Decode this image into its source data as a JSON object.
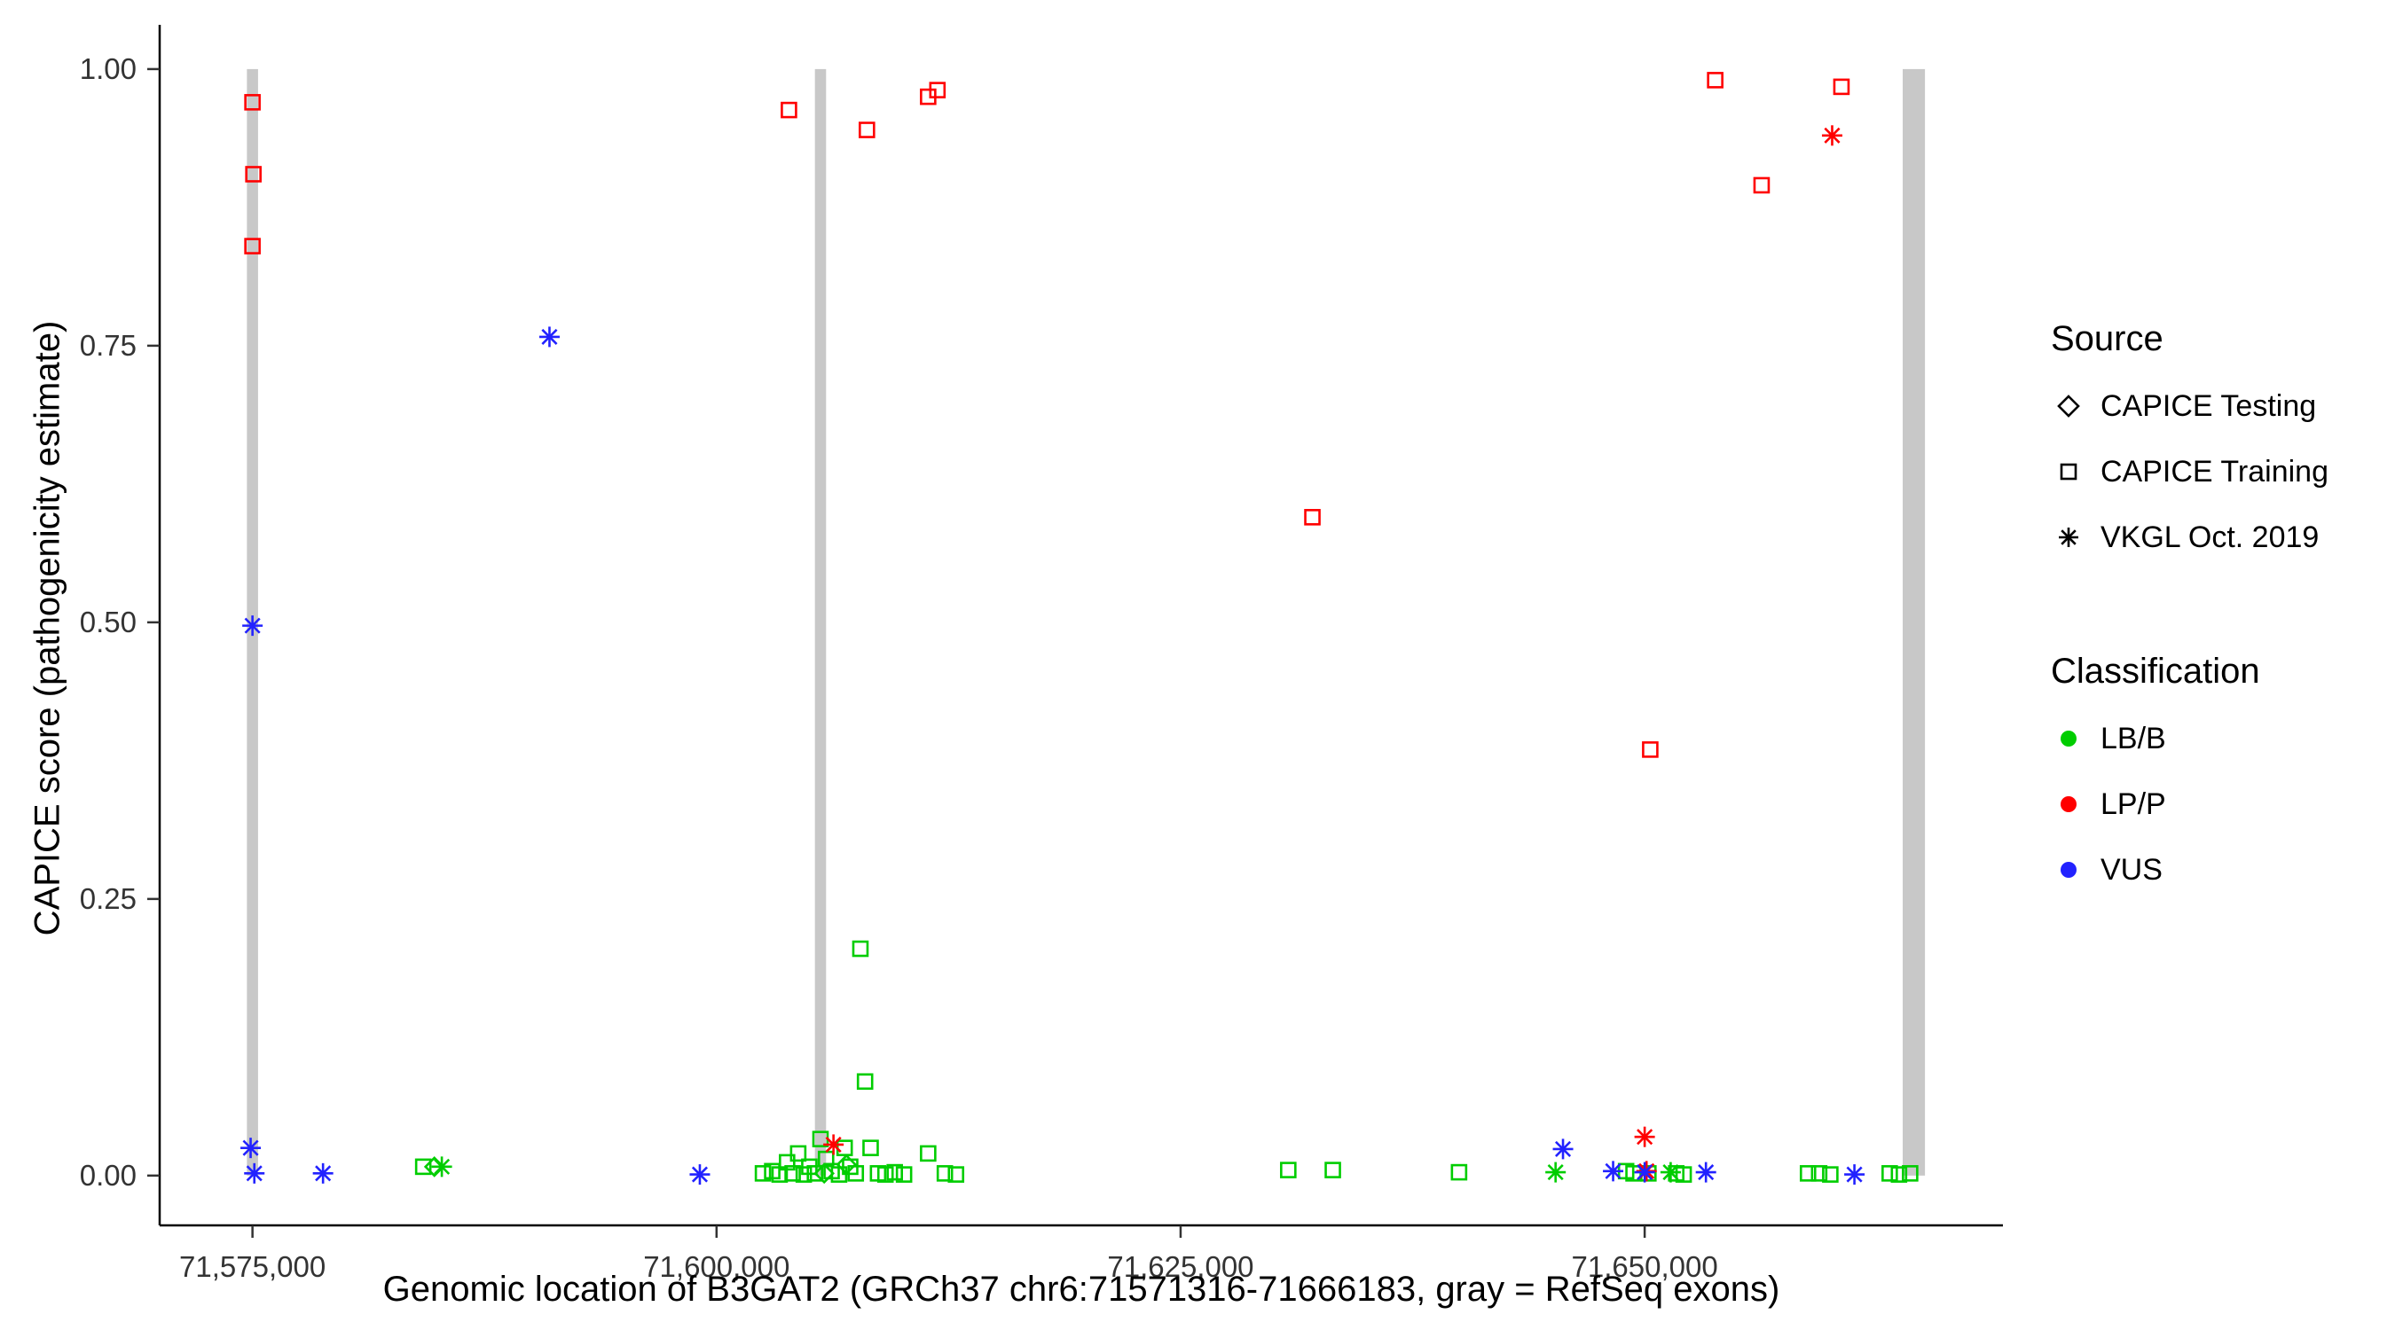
{
  "figure": {
    "y_axis_title": "CAPICE score (pathogenicity estimate)",
    "x_axis_title": "Genomic location of B3GAT2 (GRCh37 chr6:71571316-71666183, gray = RefSeq exons)"
  },
  "legend": {
    "source": {
      "title": "Source",
      "items": [
        {
          "label": "CAPICE Testing",
          "shape": "diamond"
        },
        {
          "label": "CAPICE Training",
          "shape": "square"
        },
        {
          "label": "VKGL Oct. 2019",
          "shape": "asterisk"
        }
      ]
    },
    "classification": {
      "title": "Classification",
      "items": [
        {
          "label": "LB/B",
          "color": "#00CD00"
        },
        {
          "label": "LP/P",
          "color": "#FF0000"
        },
        {
          "label": "VUS",
          "color": "#2222FF"
        }
      ]
    }
  },
  "chart_data": {
    "type": "scatter",
    "title": "",
    "xlabel": "Genomic location of B3GAT2 (GRCh37 chr6:71571316-71666183, gray = RefSeq exons)",
    "ylabel": "CAPICE score (pathogenicity estimate)",
    "xlim": [
      71570000,
      71669300
    ],
    "ylim": [
      -0.045,
      1.04
    ],
    "grid": false,
    "legend_position": "right",
    "x_ticks": [
      {
        "v": 71575000,
        "label": "71,575,000"
      },
      {
        "v": 71600000,
        "label": "71,600,000"
      },
      {
        "v": 71625000,
        "label": "71,625,000"
      },
      {
        "v": 71650000,
        "label": "71,650,000"
      }
    ],
    "y_ticks": [
      {
        "v": 0.0,
        "label": "0.00"
      },
      {
        "v": 0.25,
        "label": "0.25"
      },
      {
        "v": 0.5,
        "label": "0.50"
      },
      {
        "v": 0.75,
        "label": "0.75"
      },
      {
        "v": 1.0,
        "label": "1.00"
      }
    ],
    "colors": {
      "LB/B": "#00CD00",
      "LP/P": "#FF0000",
      "VUS": "#2222FF",
      "exon": "#C8C8C8",
      "axis": "#000000",
      "tick_label": "#333333"
    },
    "shape_by_source": {
      "CAPICE Testing": "diamond",
      "CAPICE Training": "square",
      "VKGL Oct. 2019": "asterisk"
    },
    "exons": [
      {
        "x0": 71574700,
        "x1": 71575300,
        "y0": 0.0,
        "y1": 1.0
      },
      {
        "x0": 71605300,
        "x1": 71605900,
        "y0": 0.0,
        "y1": 1.0
      },
      {
        "x0": 71663900,
        "x1": 71665100,
        "y0": 0.0,
        "y1": 1.0
      }
    ],
    "points": [
      {
        "x": 71575000,
        "y": 0.97,
        "source": "CAPICE Training",
        "class": "LP/P"
      },
      {
        "x": 71575050,
        "y": 0.905,
        "source": "CAPICE Training",
        "class": "LP/P"
      },
      {
        "x": 71575000,
        "y": 0.84,
        "source": "CAPICE Training",
        "class": "LP/P"
      },
      {
        "x": 71603900,
        "y": 0.963,
        "source": "CAPICE Training",
        "class": "LP/P"
      },
      {
        "x": 71608100,
        "y": 0.945,
        "source": "CAPICE Training",
        "class": "LP/P"
      },
      {
        "x": 71611400,
        "y": 0.975,
        "source": "CAPICE Training",
        "class": "LP/P"
      },
      {
        "x": 71611900,
        "y": 0.981,
        "source": "CAPICE Training",
        "class": "LP/P"
      },
      {
        "x": 71632100,
        "y": 0.595,
        "source": "CAPICE Training",
        "class": "LP/P"
      },
      {
        "x": 71650300,
        "y": 0.385,
        "source": "CAPICE Training",
        "class": "LP/P"
      },
      {
        "x": 71653800,
        "y": 0.99,
        "source": "CAPICE Training",
        "class": "LP/P"
      },
      {
        "x": 71656300,
        "y": 0.895,
        "source": "CAPICE Training",
        "class": "LP/P"
      },
      {
        "x": 71660600,
        "y": 0.984,
        "source": "CAPICE Training",
        "class": "LP/P"
      },
      {
        "x": 71660100,
        "y": 0.94,
        "source": "VKGL Oct. 2019",
        "class": "LP/P"
      },
      {
        "x": 71650000,
        "y": 0.035,
        "source": "VKGL Oct. 2019",
        "class": "LP/P"
      },
      {
        "x": 71650100,
        "y": 0.004,
        "source": "VKGL Oct. 2019",
        "class": "LP/P"
      },
      {
        "x": 71606300,
        "y": 0.028,
        "source": "VKGL Oct. 2019",
        "class": "LP/P"
      },
      {
        "x": 71591000,
        "y": 0.758,
        "source": "VKGL Oct. 2019",
        "class": "VUS"
      },
      {
        "x": 71575000,
        "y": 0.497,
        "source": "VKGL Oct. 2019",
        "class": "VUS"
      },
      {
        "x": 71574900,
        "y": 0.025,
        "source": "VKGL Oct. 2019",
        "class": "VUS"
      },
      {
        "x": 71575100,
        "y": 0.002,
        "source": "VKGL Oct. 2019",
        "class": "VUS"
      },
      {
        "x": 71578800,
        "y": 0.002,
        "source": "VKGL Oct. 2019",
        "class": "VUS"
      },
      {
        "x": 71599100,
        "y": 0.001,
        "source": "VKGL Oct. 2019",
        "class": "VUS"
      },
      {
        "x": 71645600,
        "y": 0.024,
        "source": "VKGL Oct. 2019",
        "class": "VUS"
      },
      {
        "x": 71648300,
        "y": 0.004,
        "source": "VKGL Oct. 2019",
        "class": "VUS"
      },
      {
        "x": 71650000,
        "y": 0.003,
        "source": "VKGL Oct. 2019",
        "class": "VUS"
      },
      {
        "x": 71653300,
        "y": 0.003,
        "source": "VKGL Oct. 2019",
        "class": "VUS"
      },
      {
        "x": 71661300,
        "y": 0.001,
        "source": "VKGL Oct. 2019",
        "class": "VUS"
      },
      {
        "x": 71585200,
        "y": 0.008,
        "source": "VKGL Oct. 2019",
        "class": "LB/B"
      },
      {
        "x": 71645200,
        "y": 0.003,
        "source": "VKGL Oct. 2019",
        "class": "LB/B"
      },
      {
        "x": 71651400,
        "y": 0.003,
        "source": "VKGL Oct. 2019",
        "class": "LB/B"
      },
      {
        "x": 71584800,
        "y": 0.008,
        "source": "CAPICE Testing",
        "class": "LB/B"
      },
      {
        "x": 71605800,
        "y": 0.002,
        "source": "CAPICE Testing",
        "class": "LB/B"
      },
      {
        "x": 71607000,
        "y": 0.01,
        "source": "CAPICE Testing",
        "class": "LB/B"
      },
      {
        "x": 71584200,
        "y": 0.008,
        "source": "CAPICE Training",
        "class": "LB/B"
      },
      {
        "x": 71602500,
        "y": 0.002,
        "source": "CAPICE Training",
        "class": "LB/B"
      },
      {
        "x": 71603000,
        "y": 0.004,
        "source": "CAPICE Training",
        "class": "LB/B"
      },
      {
        "x": 71603400,
        "y": 0.001,
        "source": "CAPICE Training",
        "class": "LB/B"
      },
      {
        "x": 71603800,
        "y": 0.012,
        "source": "CAPICE Training",
        "class": "LB/B"
      },
      {
        "x": 71604100,
        "y": 0.002,
        "source": "CAPICE Training",
        "class": "LB/B"
      },
      {
        "x": 71604400,
        "y": 0.02,
        "source": "CAPICE Training",
        "class": "LB/B"
      },
      {
        "x": 71604700,
        "y": 0.001,
        "source": "CAPICE Training",
        "class": "LB/B"
      },
      {
        "x": 71605000,
        "y": 0.008,
        "source": "CAPICE Training",
        "class": "LB/B"
      },
      {
        "x": 71605300,
        "y": 0.002,
        "source": "CAPICE Training",
        "class": "LB/B"
      },
      {
        "x": 71605600,
        "y": 0.033,
        "source": "CAPICE Training",
        "class": "LB/B"
      },
      {
        "x": 71605900,
        "y": 0.015,
        "source": "CAPICE Training",
        "class": "LB/B"
      },
      {
        "x": 71606200,
        "y": 0.004,
        "source": "CAPICE Training",
        "class": "LB/B"
      },
      {
        "x": 71606600,
        "y": 0.001,
        "source": "CAPICE Training",
        "class": "LB/B"
      },
      {
        "x": 71606900,
        "y": 0.025,
        "source": "CAPICE Training",
        "class": "LB/B"
      },
      {
        "x": 71607200,
        "y": 0.008,
        "source": "CAPICE Training",
        "class": "LB/B"
      },
      {
        "x": 71607500,
        "y": 0.002,
        "source": "CAPICE Training",
        "class": "LB/B"
      },
      {
        "x": 71607750,
        "y": 0.205,
        "source": "CAPICE Training",
        "class": "LB/B"
      },
      {
        "x": 71608000,
        "y": 0.085,
        "source": "CAPICE Training",
        "class": "LB/B"
      },
      {
        "x": 71608300,
        "y": 0.025,
        "source": "CAPICE Training",
        "class": "LB/B"
      },
      {
        "x": 71608700,
        "y": 0.002,
        "source": "CAPICE Training",
        "class": "LB/B"
      },
      {
        "x": 71609100,
        "y": 0.001,
        "source": "CAPICE Training",
        "class": "LB/B"
      },
      {
        "x": 71609600,
        "y": 0.003,
        "source": "CAPICE Training",
        "class": "LB/B"
      },
      {
        "x": 71610100,
        "y": 0.001,
        "source": "CAPICE Training",
        "class": "LB/B"
      },
      {
        "x": 71611400,
        "y": 0.02,
        "source": "CAPICE Training",
        "class": "LB/B"
      },
      {
        "x": 71612300,
        "y": 0.002,
        "source": "CAPICE Training",
        "class": "LB/B"
      },
      {
        "x": 71612900,
        "y": 0.001,
        "source": "CAPICE Training",
        "class": "LB/B"
      },
      {
        "x": 71630800,
        "y": 0.005,
        "source": "CAPICE Training",
        "class": "LB/B"
      },
      {
        "x": 71633200,
        "y": 0.005,
        "source": "CAPICE Training",
        "class": "LB/B"
      },
      {
        "x": 71640000,
        "y": 0.003,
        "source": "CAPICE Training",
        "class": "LB/B"
      },
      {
        "x": 71649000,
        "y": 0.004,
        "source": "CAPICE Training",
        "class": "LB/B"
      },
      {
        "x": 71649400,
        "y": 0.002,
        "source": "CAPICE Training",
        "class": "LB/B"
      },
      {
        "x": 71650200,
        "y": 0.002,
        "source": "CAPICE Training",
        "class": "LB/B"
      },
      {
        "x": 71651700,
        "y": 0.002,
        "source": "CAPICE Training",
        "class": "LB/B"
      },
      {
        "x": 71652100,
        "y": 0.001,
        "source": "CAPICE Training",
        "class": "LB/B"
      },
      {
        "x": 71658800,
        "y": 0.002,
        "source": "CAPICE Training",
        "class": "LB/B"
      },
      {
        "x": 71659400,
        "y": 0.002,
        "source": "CAPICE Training",
        "class": "LB/B"
      },
      {
        "x": 71660000,
        "y": 0.001,
        "source": "CAPICE Training",
        "class": "LB/B"
      },
      {
        "x": 71663200,
        "y": 0.002,
        "source": "CAPICE Training",
        "class": "LB/B"
      },
      {
        "x": 71663700,
        "y": 0.001,
        "source": "CAPICE Training",
        "class": "LB/B"
      },
      {
        "x": 71664300,
        "y": 0.002,
        "source": "CAPICE Training",
        "class": "LB/B"
      }
    ]
  }
}
